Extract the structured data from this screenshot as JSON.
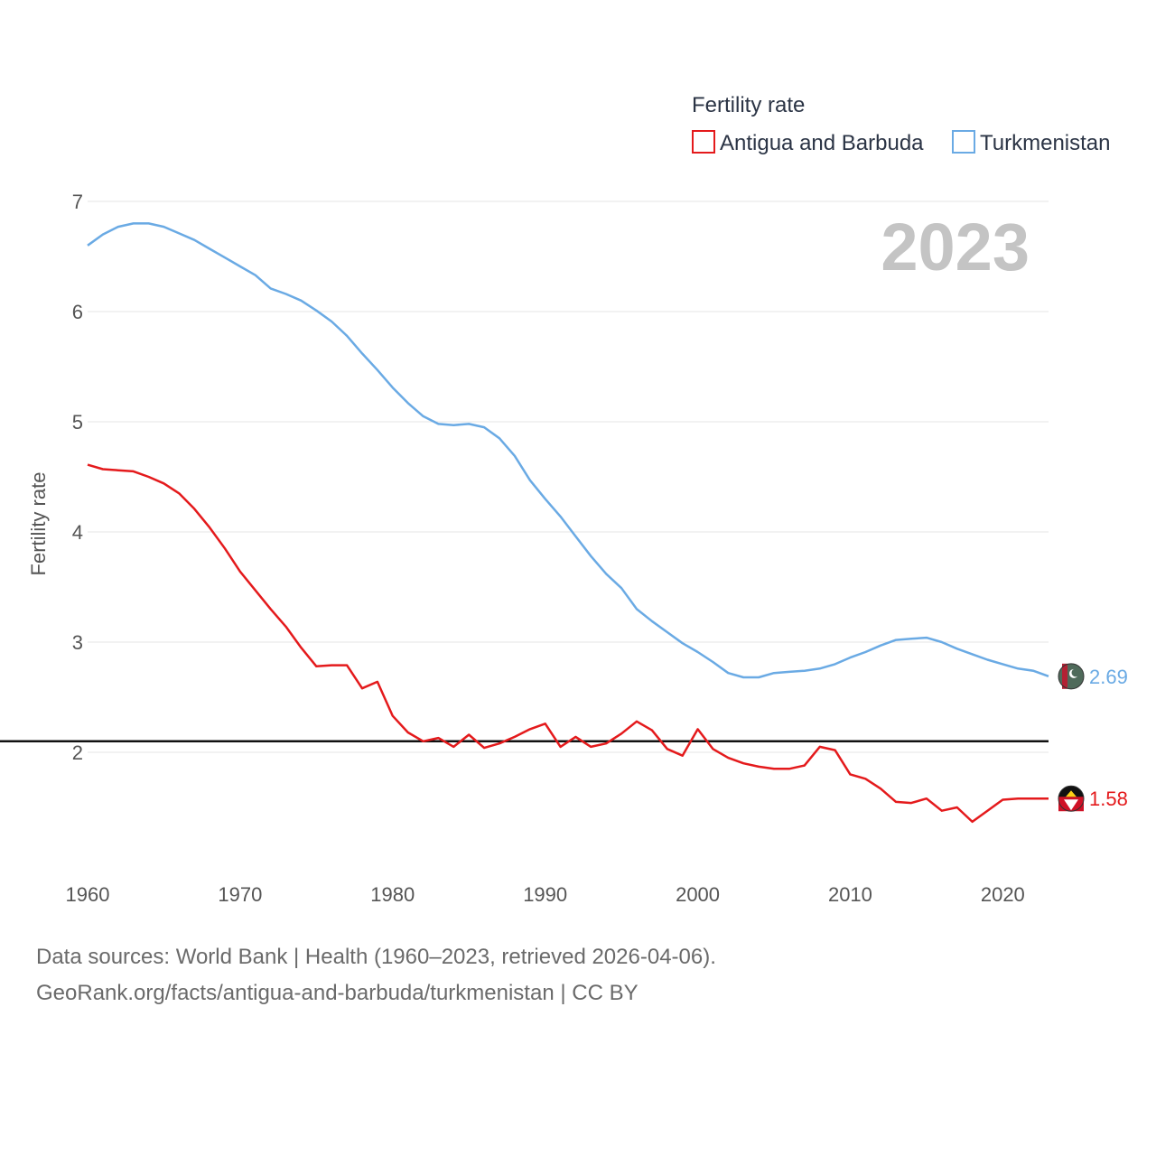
{
  "chart_data": {
    "type": "line",
    "title": "Fertility rate",
    "watermark_year": "2023",
    "xlabel": "",
    "ylabel": "Fertility rate",
    "xlim": [
      1960,
      2023
    ],
    "ylim": [
      1.0,
      7.0
    ],
    "x_ticks": [
      1960,
      1970,
      1980,
      1990,
      2000,
      2010,
      2020
    ],
    "y_ticks": [
      2,
      3,
      4,
      5,
      6,
      7
    ],
    "grid": true,
    "legend_position": "top-right",
    "reference_line": {
      "y": 2.1
    },
    "x": [
      1960,
      1961,
      1962,
      1963,
      1964,
      1965,
      1966,
      1967,
      1968,
      1969,
      1970,
      1971,
      1972,
      1973,
      1974,
      1975,
      1976,
      1977,
      1978,
      1979,
      1980,
      1981,
      1982,
      1983,
      1984,
      1985,
      1986,
      1987,
      1988,
      1989,
      1990,
      1991,
      1992,
      1993,
      1994,
      1995,
      1996,
      1997,
      1998,
      1999,
      2000,
      2001,
      2002,
      2003,
      2004,
      2005,
      2006,
      2007,
      2008,
      2009,
      2010,
      2011,
      2012,
      2013,
      2014,
      2015,
      2016,
      2017,
      2018,
      2019,
      2020,
      2021,
      2022,
      2023
    ],
    "series": [
      {
        "name": "Antigua and Barbuda",
        "color": "#e41a1c",
        "end_label": "1.58",
        "flag_icon": "antigua-and-barbuda-flag-icon",
        "values": [
          4.61,
          4.57,
          4.56,
          4.55,
          4.5,
          4.44,
          4.35,
          4.21,
          4.04,
          3.85,
          3.64,
          3.47,
          3.3,
          3.14,
          2.95,
          2.78,
          2.79,
          2.79,
          2.58,
          2.64,
          2.33,
          2.18,
          2.1,
          2.13,
          2.05,
          2.16,
          2.04,
          2.08,
          2.14,
          2.21,
          2.26,
          2.05,
          2.14,
          2.05,
          2.08,
          2.17,
          2.28,
          2.2,
          2.03,
          1.97,
          2.21,
          2.03,
          1.95,
          1.9,
          1.87,
          1.85,
          1.85,
          1.88,
          2.05,
          2.02,
          1.8,
          1.76,
          1.67,
          1.55,
          1.54,
          1.58,
          1.47,
          1.5,
          1.37,
          1.47,
          1.57,
          1.58,
          1.58,
          1.58
        ]
      },
      {
        "name": "Turkmenistan",
        "color": "#6aaae4",
        "end_label": "2.69",
        "flag_icon": "turkmenistan-flag-icon",
        "values": [
          6.6,
          6.7,
          6.77,
          6.8,
          6.8,
          6.77,
          6.71,
          6.65,
          6.57,
          6.49,
          6.41,
          6.33,
          6.21,
          6.16,
          6.1,
          6.01,
          5.91,
          5.78,
          5.62,
          5.47,
          5.31,
          5.17,
          5.05,
          4.98,
          4.97,
          4.98,
          4.95,
          4.85,
          4.69,
          4.47,
          4.3,
          4.14,
          3.96,
          3.78,
          3.62,
          3.49,
          3.3,
          3.19,
          3.09,
          2.99,
          2.91,
          2.82,
          2.72,
          2.68,
          2.68,
          2.72,
          2.73,
          2.74,
          2.76,
          2.8,
          2.86,
          2.91,
          2.97,
          3.02,
          3.03,
          3.04,
          3.0,
          2.94,
          2.89,
          2.84,
          2.8,
          2.76,
          2.74,
          2.69
        ]
      }
    ]
  },
  "footer": {
    "line1": "Data sources: World Bank | Health (1960–2023, retrieved 2026-04-06).",
    "line2": "GeoRank.org/facts/antigua-and-barbuda/turkmenistan | CC BY"
  }
}
